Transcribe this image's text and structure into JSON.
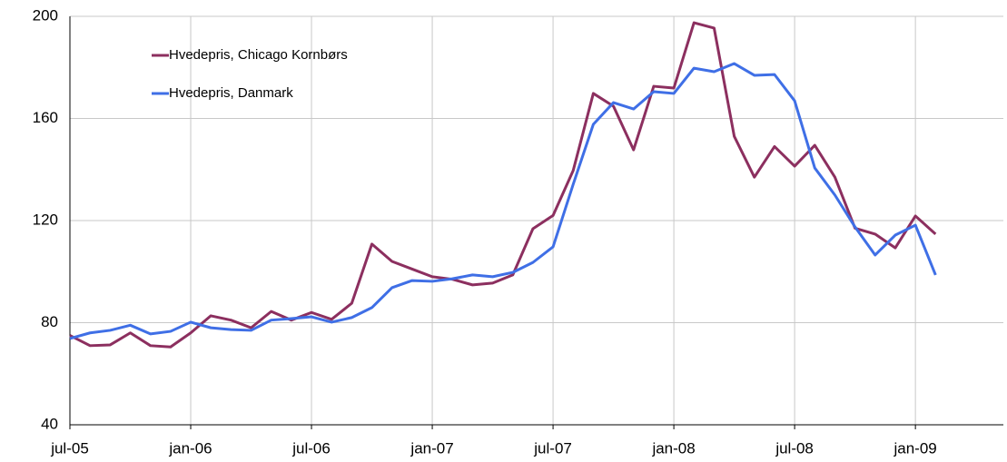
{
  "chart_data": {
    "type": "line",
    "categories": [
      "jul-05",
      null,
      null,
      null,
      null,
      null,
      "jan-06",
      null,
      null,
      null,
      null,
      null,
      "jul-06",
      null,
      null,
      null,
      null,
      null,
      "jan-07",
      null,
      null,
      null,
      null,
      null,
      "jul-07",
      null,
      null,
      null,
      null,
      null,
      "jan-08",
      null,
      null,
      null,
      null,
      null,
      "jul-08",
      null,
      null,
      null,
      null,
      null,
      "jan-09",
      null
    ],
    "series": [
      {
        "name": "Hvedepris, Chicago Kornbørs",
        "color": "#8c2f5f",
        "values": [
          75,
          71,
          71.3,
          76,
          71,
          70.5,
          76,
          82.7,
          81,
          78,
          84.4,
          81,
          84,
          81.3,
          87.6,
          110.8,
          104,
          101,
          98,
          97,
          94.8,
          95.5,
          98.7,
          116.8,
          122,
          139.6,
          169.8,
          164.8,
          147.7,
          172.6,
          171.9,
          197.5,
          195.4,
          153,
          137,
          149,
          141.3,
          149.5,
          137,
          117,
          114.7,
          109.3,
          121.8,
          114.7
        ]
      },
      {
        "name": "Hvedepris, Danmark",
        "color": "#3f6fe6",
        "values": [
          73.8,
          76,
          77,
          79,
          75.6,
          76.6,
          80.2,
          78,
          77.3,
          77,
          81,
          81.6,
          82.3,
          80.2,
          82,
          85.9,
          93.7,
          96.5,
          96.2,
          97.2,
          98.7,
          98,
          99.7,
          103.6,
          109.7,
          134.2,
          157.7,
          166.2,
          163.7,
          170.5,
          169.8,
          179.7,
          178.3,
          181.5,
          176.9,
          177.2,
          166.9,
          140.6,
          130,
          117.5,
          106.5,
          114.3,
          118.2,
          98.7
        ]
      }
    ],
    "ylim": [
      40,
      200
    ],
    "yticks": [
      40,
      80,
      120,
      160,
      200
    ],
    "grid": true,
    "legend": "upper left"
  }
}
